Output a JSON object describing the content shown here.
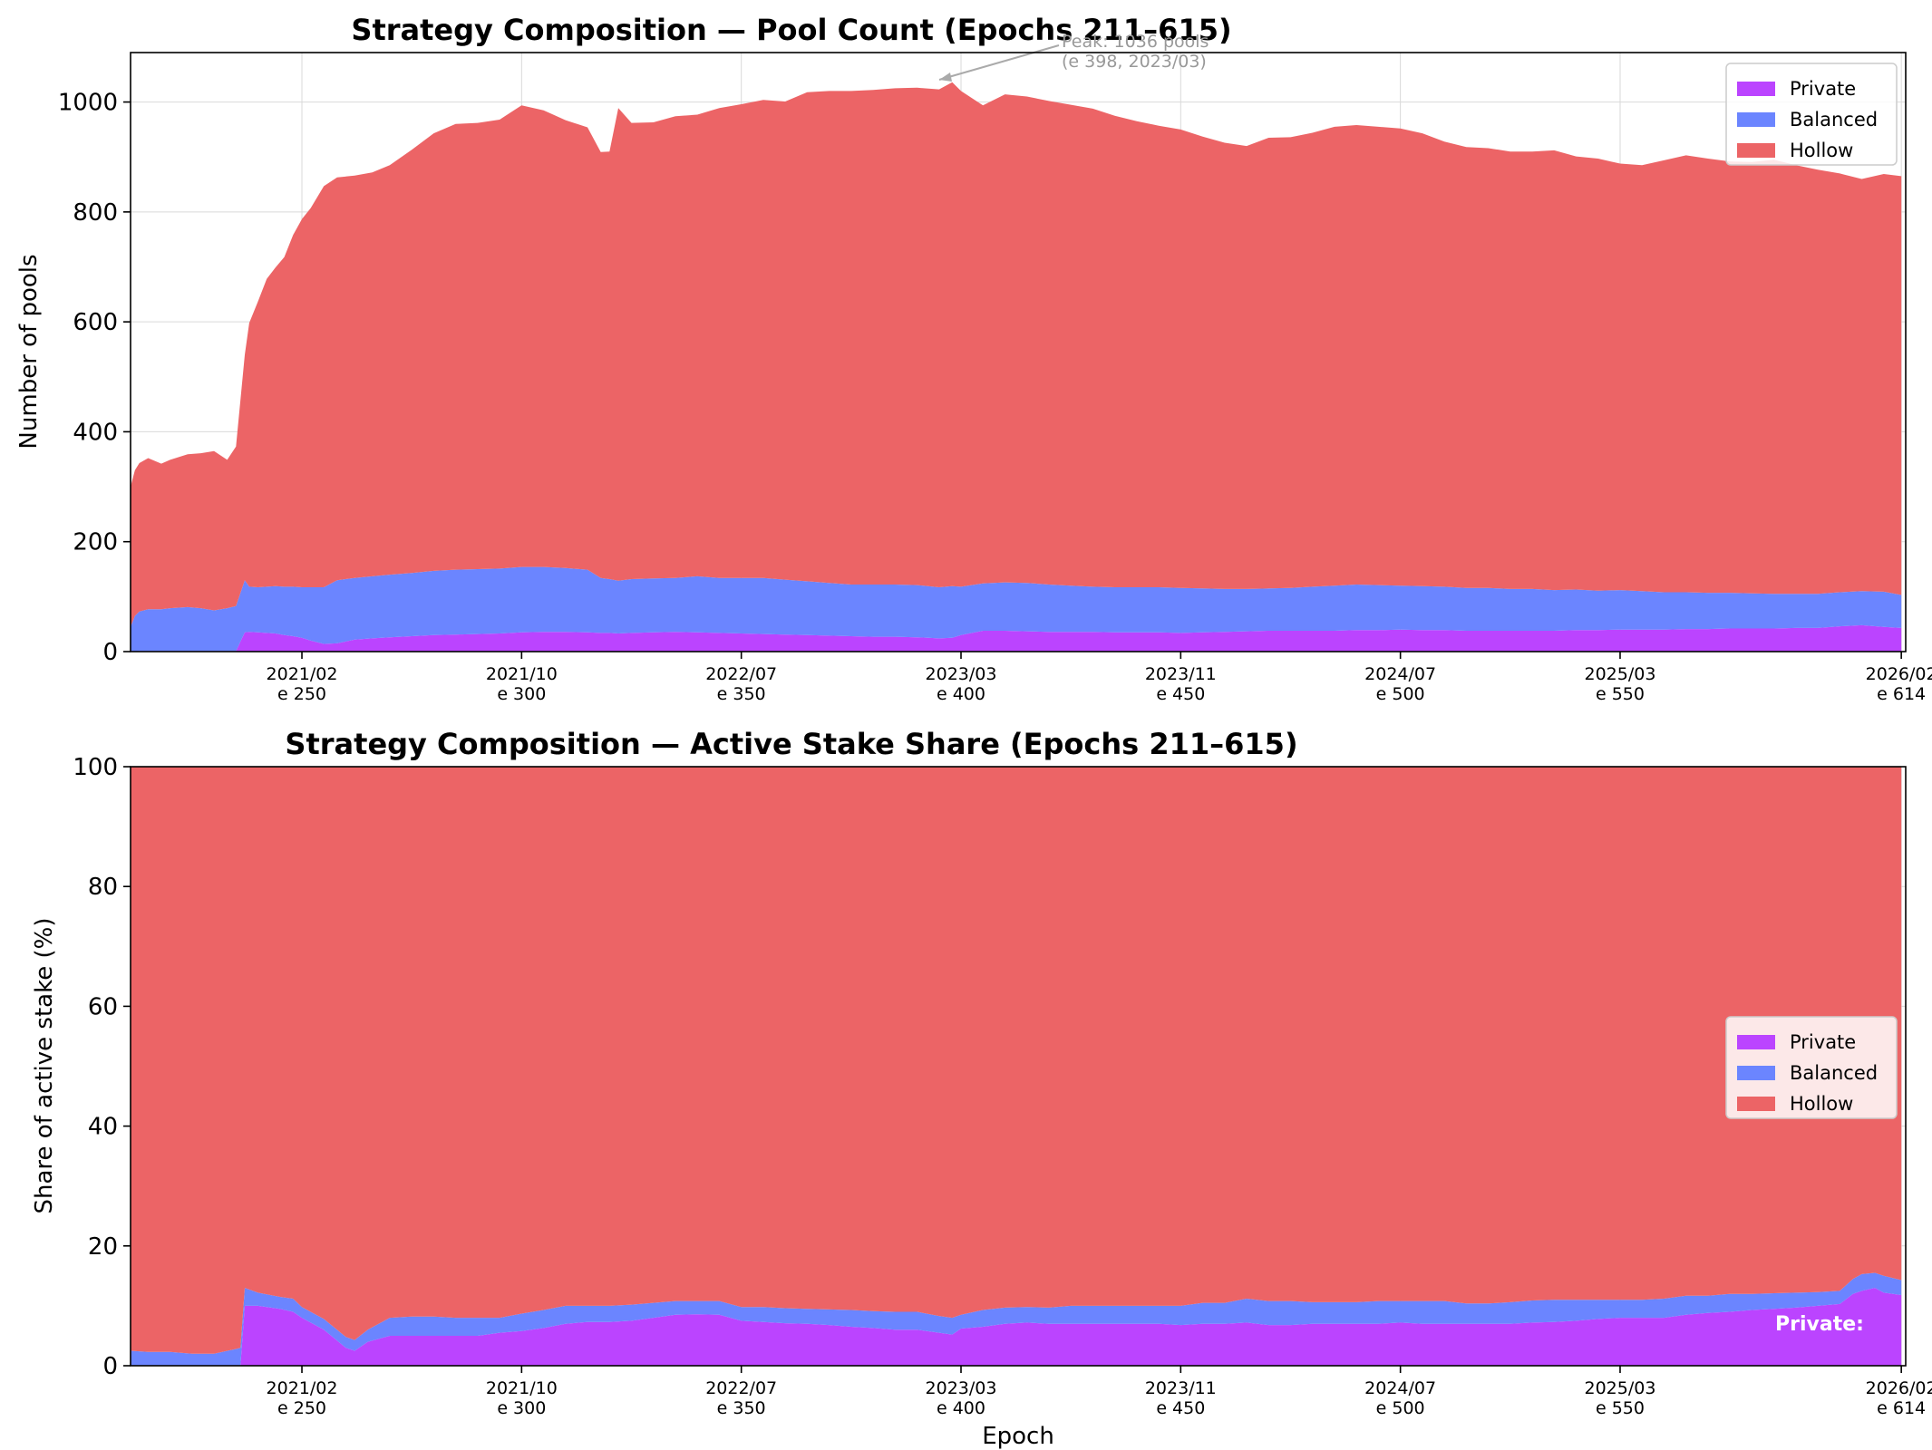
{
  "colors": {
    "private": "#bb44ff",
    "balanced": "#6b85ff",
    "hollow": "#ec6466",
    "grid": "#d9d9d9",
    "annotation": "#999999"
  },
  "xticks": [
    {
      "epoch": 250,
      "date": "2021/02",
      "label": "e 250"
    },
    {
      "epoch": 300,
      "date": "2021/10",
      "label": "e 300"
    },
    {
      "epoch": 350,
      "date": "2022/07",
      "label": "e 350"
    },
    {
      "epoch": 400,
      "date": "2023/03",
      "label": "e 400"
    },
    {
      "epoch": 450,
      "date": "2023/11",
      "label": "e 450"
    },
    {
      "epoch": 500,
      "date": "2024/07",
      "label": "e 500"
    },
    {
      "epoch": 550,
      "date": "2025/03",
      "label": "e 550"
    },
    {
      "epoch": 614,
      "date": "2026/02",
      "label": "e 614"
    }
  ],
  "chart_data": [
    {
      "type": "area",
      "stacked": true,
      "title": "Strategy Composition — Pool Count (Epochs 211–615)",
      "xlabel": "",
      "ylabel": "Number of pools",
      "xlim": [
        211,
        615
      ],
      "ylim": [
        0,
        1090
      ],
      "yticks": [
        0,
        200,
        400,
        600,
        800,
        1000
      ],
      "grid": true,
      "legend": {
        "position": "top-right",
        "entries": [
          "Private",
          "Balanced",
          "Hollow"
        ]
      },
      "annotation": {
        "line1": "Peak: 1036 pools",
        "line2": "(e 398, 2023/03)",
        "epoch": 398,
        "value": 1036
      },
      "x": [
        211,
        212,
        213,
        215,
        218,
        220,
        224,
        227,
        230,
        233,
        235,
        237,
        238,
        240,
        242,
        244,
        246,
        248,
        250,
        252,
        255,
        258,
        262,
        266,
        270,
        275,
        280,
        285,
        290,
        295,
        300,
        305,
        310,
        315,
        318,
        320,
        322,
        325,
        330,
        335,
        340,
        345,
        350,
        355,
        360,
        365,
        370,
        375,
        380,
        385,
        390,
        395,
        398,
        400,
        405,
        410,
        415,
        420,
        425,
        430,
        435,
        440,
        445,
        450,
        455,
        460,
        465,
        470,
        475,
        480,
        485,
        490,
        495,
        500,
        505,
        510,
        515,
        520,
        525,
        530,
        535,
        540,
        545,
        550,
        555,
        560,
        565,
        570,
        575,
        580,
        585,
        590,
        595,
        600,
        605,
        610,
        614
      ],
      "series": [
        {
          "name": "Private",
          "values": [
            0,
            0,
            1,
            1,
            1,
            1,
            1,
            1,
            1,
            1,
            1,
            35,
            36,
            35,
            34,
            33,
            30,
            28,
            25,
            20,
            14,
            15,
            22,
            24,
            26,
            28,
            30,
            31,
            32,
            33,
            35,
            36,
            36,
            35,
            34,
            34,
            33,
            34,
            35,
            36,
            35,
            34,
            33,
            32,
            31,
            30,
            29,
            28,
            27,
            27,
            26,
            24,
            25,
            30,
            38,
            38,
            37,
            36,
            36,
            36,
            35,
            35,
            35,
            34,
            35,
            36,
            37,
            38,
            38,
            38,
            38,
            39,
            39,
            40,
            39,
            39,
            38,
            38,
            38,
            38,
            38,
            39,
            39,
            40,
            40,
            40,
            41,
            41,
            42,
            42,
            42,
            43,
            43,
            46,
            48,
            45,
            43
          ]
        },
        {
          "name": "Balanced",
          "values": [
            45,
            65,
            72,
            76,
            76,
            78,
            80,
            78,
            74,
            78,
            82,
            95,
            82,
            82,
            84,
            86,
            88,
            90,
            92,
            97,
            103,
            115,
            112,
            113,
            114,
            115,
            117,
            118,
            118,
            118,
            119,
            118,
            116,
            114,
            100,
            98,
            96,
            98,
            98,
            98,
            102,
            100,
            101,
            102,
            100,
            98,
            96,
            94,
            95,
            95,
            95,
            93,
            94,
            88,
            86,
            88,
            88,
            86,
            84,
            82,
            82,
            82,
            82,
            82,
            80,
            78,
            77,
            77,
            78,
            80,
            82,
            83,
            82,
            80,
            80,
            79,
            78,
            78,
            76,
            76,
            74,
            74,
            72,
            72,
            70,
            68,
            67,
            66,
            65,
            64,
            63,
            62,
            62,
            62,
            62,
            64,
            60
          ]
        },
        {
          "name": "Hollow",
          "values": [
            255,
            265,
            270,
            275,
            265,
            270,
            278,
            282,
            290,
            270,
            290,
            410,
            480,
            520,
            560,
            580,
            600,
            640,
            670,
            690,
            730,
            733,
            732,
            735,
            745,
            770,
            796,
            811,
            812,
            817,
            840,
            831,
            815,
            805,
            775,
            778,
            860,
            830,
            830,
            840,
            840,
            855,
            862,
            870,
            870,
            890,
            895,
            898,
            900,
            903,
            905,
            906,
            917,
            902,
            870,
            888,
            885,
            880,
            875,
            870,
            858,
            848,
            840,
            834,
            822,
            812,
            806,
            820,
            820,
            826,
            835,
            836,
            834,
            832,
            824,
            810,
            802,
            800,
            796,
            796,
            800,
            788,
            786,
            776,
            775,
            786,
            795,
            790,
            785,
            785,
            790,
            780,
            772,
            762,
            750,
            760,
            762
          ]
        }
      ]
    },
    {
      "type": "area",
      "stacked": true,
      "title": "Strategy Composition — Active Stake Share (Epochs 211–615)",
      "xlabel": "Epoch",
      "ylabel": "Share of active stake (%)",
      "xlim": [
        211,
        615
      ],
      "ylim": [
        0,
        100
      ],
      "yticks": [
        0,
        20,
        40,
        60,
        80,
        100
      ],
      "grid": true,
      "legend": {
        "position": "center-right",
        "entries": [
          "Private",
          "Balanced",
          "Hollow"
        ]
      },
      "inline_label": "Private:",
      "x": [
        211,
        215,
        220,
        225,
        230,
        235,
        236,
        237,
        240,
        245,
        248,
        250,
        255,
        260,
        262,
        265,
        270,
        275,
        280,
        285,
        290,
        295,
        300,
        305,
        310,
        315,
        320,
        325,
        330,
        335,
        340,
        345,
        350,
        355,
        360,
        365,
        370,
        375,
        380,
        385,
        390,
        395,
        398,
        400,
        405,
        410,
        415,
        420,
        425,
        430,
        435,
        440,
        445,
        450,
        455,
        460,
        465,
        470,
        475,
        480,
        485,
        490,
        495,
        500,
        505,
        510,
        515,
        520,
        525,
        530,
        535,
        540,
        545,
        550,
        555,
        560,
        565,
        570,
        575,
        580,
        585,
        590,
        595,
        600,
        603,
        605,
        608,
        610,
        614
      ],
      "series": [
        {
          "name": "Private",
          "values": [
            0.0,
            0.0,
            0.0,
            0.0,
            0.0,
            0.0,
            0.0,
            10.0,
            10.0,
            9.5,
            9.0,
            8.0,
            6.0,
            3.0,
            2.5,
            4.0,
            5.0,
            5.0,
            5.0,
            5.0,
            5.0,
            5.5,
            5.8,
            6.3,
            7.0,
            7.3,
            7.3,
            7.5,
            8.0,
            8.5,
            8.6,
            8.5,
            7.5,
            7.3,
            7.1,
            7.0,
            6.8,
            6.5,
            6.3,
            6.0,
            6.0,
            5.5,
            5.2,
            6.2,
            6.5,
            7.0,
            7.2,
            7.0,
            7.0,
            7.0,
            7.0,
            7.0,
            7.0,
            6.8,
            7.0,
            7.0,
            7.2,
            6.8,
            6.8,
            7.0,
            7.0,
            7.0,
            7.0,
            7.2,
            7.0,
            7.0,
            7.0,
            7.0,
            7.0,
            7.2,
            7.3,
            7.5,
            7.8,
            8.0,
            8.0,
            8.0,
            8.5,
            8.8,
            9.0,
            9.3,
            9.5,
            9.7,
            10.0,
            10.3,
            12.0,
            12.5,
            13.0,
            12.2,
            11.8
          ]
        },
        {
          "name": "Balanced",
          "values": [
            2.5,
            2.3,
            2.3,
            2.0,
            2.0,
            2.8,
            3.0,
            3.0,
            2.2,
            2.0,
            2.2,
            1.8,
            1.8,
            1.8,
            1.8,
            2.0,
            3.0,
            3.2,
            3.2,
            3.0,
            3.0,
            2.5,
            2.9,
            3.0,
            3.0,
            2.7,
            2.7,
            2.7,
            2.5,
            2.3,
            2.2,
            2.3,
            2.3,
            2.5,
            2.5,
            2.5,
            2.6,
            2.8,
            2.8,
            3.0,
            3.0,
            2.8,
            2.8,
            2.3,
            2.8,
            2.7,
            2.6,
            2.7,
            3.0,
            3.0,
            3.0,
            3.0,
            3.0,
            3.2,
            3.5,
            3.5,
            4.0,
            4.0,
            4.0,
            3.6,
            3.6,
            3.6,
            3.8,
            3.6,
            3.8,
            3.8,
            3.4,
            3.4,
            3.6,
            3.7,
            3.7,
            3.5,
            3.2,
            3.0,
            3.0,
            3.2,
            3.2,
            2.9,
            3.0,
            2.7,
            2.6,
            2.5,
            2.3,
            2.2,
            2.5,
            2.8,
            2.5,
            2.8,
            2.5
          ]
        },
        {
          "name": "Hollow",
          "values": [
            97.5,
            97.7,
            97.7,
            98.0,
            98.0,
            97.2,
            97.0,
            87.0,
            87.8,
            88.5,
            88.8,
            90.2,
            92.2,
            95.2,
            95.7,
            94.0,
            92.0,
            91.8,
            91.8,
            92.0,
            92.0,
            92.0,
            91.3,
            90.7,
            90.0,
            90.0,
            90.0,
            89.8,
            89.5,
            89.2,
            89.2,
            89.2,
            90.2,
            90.2,
            90.4,
            90.5,
            90.6,
            90.7,
            90.9,
            91.0,
            91.0,
            91.7,
            92.0,
            91.5,
            90.7,
            90.3,
            90.2,
            90.3,
            90.0,
            90.0,
            90.0,
            90.0,
            90.0,
            90.0,
            89.5,
            89.5,
            88.8,
            89.2,
            89.2,
            89.4,
            89.4,
            89.4,
            89.2,
            89.2,
            89.2,
            89.2,
            89.6,
            89.6,
            89.4,
            89.1,
            89.0,
            89.0,
            89.0,
            89.0,
            89.0,
            88.8,
            88.3,
            88.3,
            88.0,
            88.0,
            87.9,
            87.8,
            87.7,
            87.5,
            85.5,
            84.7,
            84.5,
            85.0,
            85.7
          ]
        }
      ]
    }
  ]
}
